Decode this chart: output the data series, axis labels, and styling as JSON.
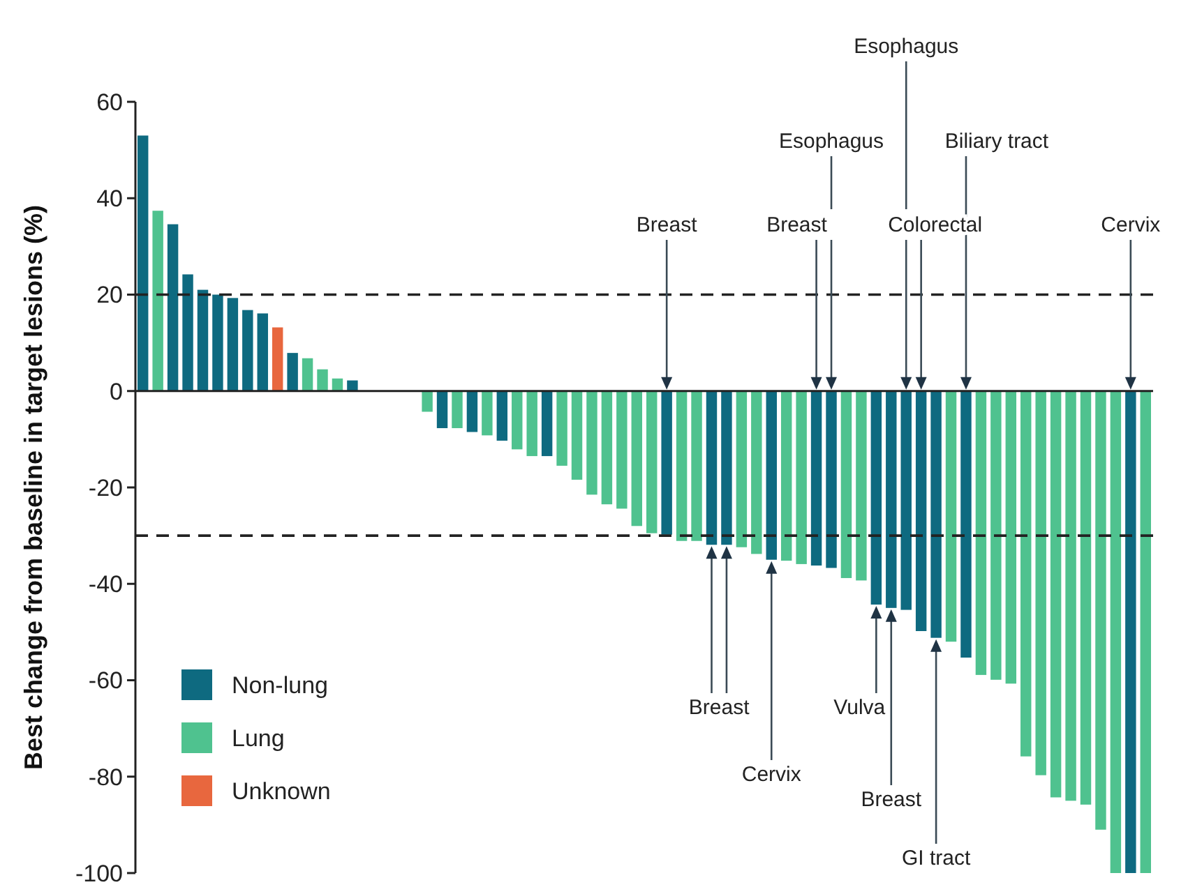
{
  "chart_data": {
    "type": "bar",
    "ylabel": "Best change from baseline in target lesions (%)",
    "categories": [
      null,
      null,
      null,
      null,
      null,
      null,
      null,
      null,
      null,
      null,
      null,
      null,
      null,
      null,
      null,
      null,
      null,
      null,
      null,
      null,
      null,
      null,
      null,
      null,
      null,
      null,
      null,
      null,
      null,
      null,
      null,
      null,
      null,
      null,
      null,
      null,
      null,
      null,
      null,
      null,
      null,
      null,
      null,
      null,
      null,
      null,
      null,
      null,
      null,
      null,
      null,
      null,
      null,
      null,
      null,
      null,
      null,
      null,
      null,
      null,
      null,
      null,
      null,
      null,
      null,
      null,
      null,
      null
    ],
    "series": [
      {
        "name": "Non-lung",
        "color": "#0e6a80",
        "values": [
          53,
          null,
          34.6,
          24.2,
          21,
          20,
          19.3,
          16.8,
          16.1,
          null,
          7.9,
          null,
          null,
          null,
          2.2,
          null,
          null,
          null,
          null,
          null,
          -7.7,
          null,
          -8.5,
          null,
          -10.3,
          null,
          null,
          -13.5,
          null,
          null,
          null,
          null,
          null,
          null,
          null,
          -29.8,
          null,
          null,
          -31.9,
          -31.9,
          null,
          null,
          -35,
          null,
          null,
          -36.2,
          -36.7,
          null,
          null,
          -44.3,
          -45,
          -45.4,
          -49.8,
          -51.2,
          null,
          -55.3,
          null,
          null,
          null,
          null,
          null,
          null,
          null,
          null,
          null,
          null,
          -100,
          null
        ]
      },
      {
        "name": "Lung",
        "color": "#4fc28f",
        "values": [
          null,
          37.4,
          null,
          null,
          null,
          null,
          null,
          null,
          null,
          null,
          null,
          6.8,
          4.5,
          2.6,
          null,
          null,
          null,
          null,
          null,
          -4.3,
          null,
          -7.7,
          null,
          -9.2,
          null,
          -12.1,
          -13.5,
          null,
          -15.5,
          -18.4,
          -21.5,
          -23.5,
          -24.4,
          -28,
          -29.5,
          null,
          -31.1,
          -31.1,
          null,
          null,
          -32.4,
          -33.8,
          null,
          -35.2,
          -35.9,
          null,
          null,
          -38.8,
          -39.3,
          null,
          null,
          null,
          null,
          null,
          -52,
          null,
          -58.9,
          -59.9,
          -60.7,
          -75.8,
          -79.7,
          -84.3,
          -85,
          -85.8,
          -91,
          -100,
          null,
          -100
        ]
      },
      {
        "name": "Unknown",
        "color": "#e8673e",
        "values": [
          null,
          null,
          null,
          null,
          null,
          null,
          null,
          null,
          null,
          13.2,
          null,
          null,
          null,
          null,
          null,
          null,
          null,
          null,
          null,
          null,
          null,
          null,
          null,
          null,
          null,
          null,
          null,
          null,
          null,
          null,
          null,
          null,
          null,
          null,
          null,
          null,
          null,
          null,
          null,
          null,
          null,
          null,
          null,
          null,
          null,
          null,
          null,
          null,
          null,
          null,
          null,
          null,
          null,
          null,
          null,
          null,
          null,
          null,
          null,
          null,
          null,
          null,
          null,
          null,
          null,
          null,
          null,
          null
        ]
      }
    ],
    "ylim": [
      -100,
      60
    ],
    "yticks": [
      -100,
      -80,
      -60,
      -40,
      -20,
      0,
      20,
      40,
      60
    ],
    "ref_lines": [
      {
        "axis": "y",
        "value": 20,
        "line_style": "dashed"
      },
      {
        "axis": "y",
        "value": -30,
        "line_style": "dashed"
      }
    ],
    "annotations": [
      "Breast",
      "Esophagus",
      "Breast",
      "Esophagus",
      "Colorectal",
      "Biliary tract",
      "Cervix",
      "Breast",
      "Cervix",
      "Vulva",
      "Breast",
      "GI tract"
    ],
    "legend": "bottom left",
    "grid": false
  }
}
